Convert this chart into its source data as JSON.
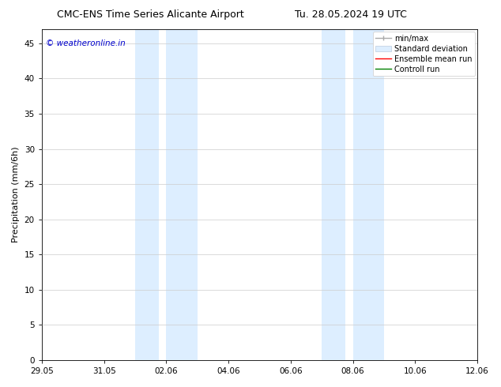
{
  "title_left": "CMC-ENS Time Series Alicante Airport",
  "title_right": "Tu. 28.05.2024 19 UTC",
  "ylabel": "Precipitation (mm/6h)",
  "ylim": [
    0,
    47
  ],
  "yticks": [
    0,
    5,
    10,
    15,
    20,
    25,
    30,
    35,
    40,
    45
  ],
  "x_tick_labels": [
    "29.05",
    "31.05",
    "02.06",
    "04.06",
    "06.06",
    "08.06",
    "10.06",
    "12.06"
  ],
  "x_tick_positions": [
    0,
    2,
    4,
    6,
    8,
    10,
    12,
    14
  ],
  "xlim": [
    0,
    14
  ],
  "shaded_regions": [
    {
      "x_start": 3.0,
      "x_end": 3.75,
      "color": "#ddeeff"
    },
    {
      "x_start": 3.75,
      "x_end": 4.0,
      "color": "#ffffff"
    },
    {
      "x_start": 4.0,
      "x_end": 5.0,
      "color": "#ddeeff"
    },
    {
      "x_start": 9.0,
      "x_end": 9.75,
      "color": "#ddeeff"
    },
    {
      "x_start": 9.75,
      "x_end": 10.0,
      "color": "#ffffff"
    },
    {
      "x_start": 10.0,
      "x_end": 11.0,
      "color": "#ddeeff"
    }
  ],
  "watermark_text": "© weatheronline.in",
  "watermark_color": "#0000cc",
  "watermark_fontsize": 7.5,
  "legend_entries": [
    {
      "label": "min/max",
      "color": "#aaaaaa",
      "type": "errorbar"
    },
    {
      "label": "Standard deviation",
      "color": "#ddeeff",
      "type": "fill"
    },
    {
      "label": "Ensemble mean run",
      "color": "#ff0000",
      "type": "line"
    },
    {
      "label": "Controll run",
      "color": "#008000",
      "type": "line"
    }
  ],
  "background_color": "#ffffff",
  "plot_bg_color": "#ffffff",
  "grid_color": "#cccccc",
  "title_fontsize": 9,
  "axis_fontsize": 8,
  "tick_fontsize": 7.5,
  "legend_fontsize": 7
}
